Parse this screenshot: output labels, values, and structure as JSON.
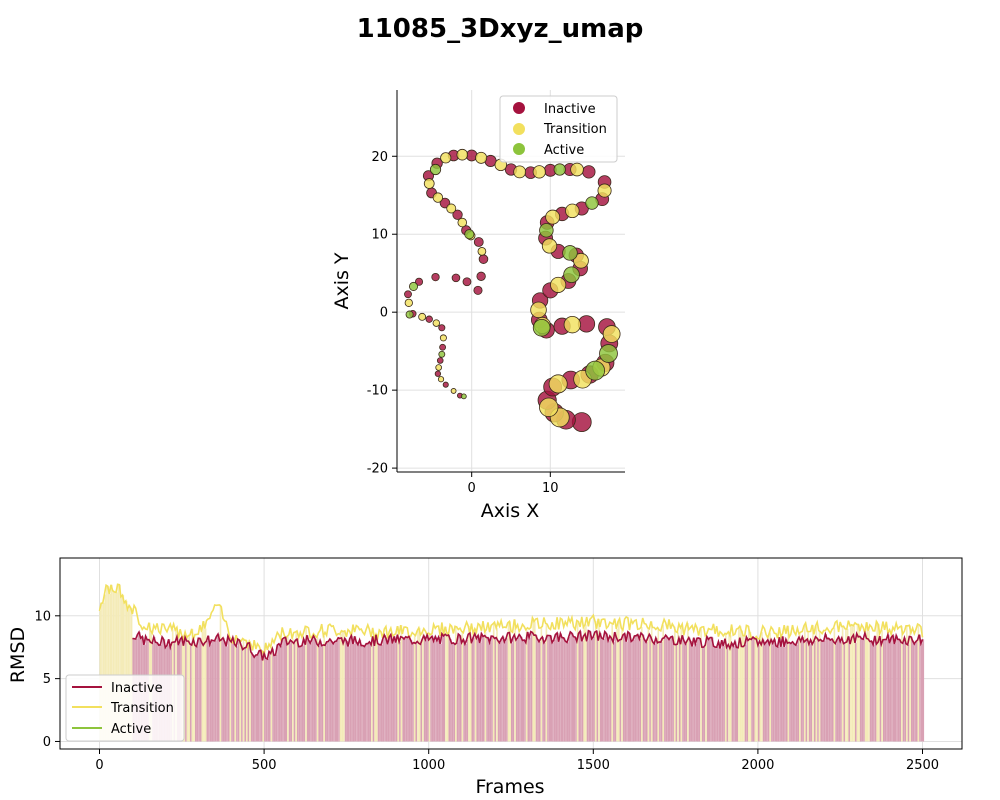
{
  "page_title": "11085_3Dxyz_umap",
  "colors": {
    "inactive": "#A5123E",
    "transition": "#F2E05E",
    "active": "#8DC43C",
    "inactive_fill": "#D9A1B4",
    "transition_fill": "#F4EBB8",
    "grid": "#E0E0E0",
    "edge": "#3A2A1A"
  },
  "chart_data": [
    {
      "type": "scatter",
      "xlabel": "Axis X",
      "ylabel": "Axis Y",
      "xlim": [
        -9.5,
        19.5
      ],
      "ylim": [
        -20.5,
        28.5
      ],
      "xticks": [
        0,
        10
      ],
      "yticks": [
        -20,
        -10,
        0,
        10,
        20
      ],
      "grid": true,
      "legend": {
        "placement": "upper right",
        "entries": [
          "Inactive",
          "Transition",
          "Active"
        ]
      },
      "series": [
        {
          "name": "Inactive",
          "points": [
            [
              14.0,
              -14.1
            ],
            [
              12.0,
              -13.8
            ],
            [
              10.5,
              -12.9
            ],
            [
              9.6,
              -11.3
            ],
            [
              10.3,
              -9.6
            ],
            [
              12.6,
              -8.7
            ],
            [
              15.0,
              -8.0
            ],
            [
              17.0,
              -6.5
            ],
            [
              17.5,
              -4.0
            ],
            [
              17.2,
              -1.9
            ],
            [
              14.6,
              -1.5
            ],
            [
              11.5,
              -1.8
            ],
            [
              9.5,
              -2.3
            ],
            [
              8.6,
              -1.0
            ],
            [
              8.7,
              1.5
            ],
            [
              10.0,
              2.8
            ],
            [
              12.3,
              4.0
            ],
            [
              13.8,
              5.6
            ],
            [
              13.3,
              7.3
            ],
            [
              11.0,
              7.8
            ],
            [
              9.4,
              9.5
            ],
            [
              9.6,
              11.5
            ],
            [
              11.5,
              12.6
            ],
            [
              14.0,
              13.3
            ],
            [
              16.6,
              14.5
            ],
            [
              16.9,
              16.7
            ],
            [
              14.9,
              18.0
            ],
            [
              12.5,
              18.3
            ],
            [
              10.0,
              18.2
            ],
            [
              7.5,
              17.9
            ],
            [
              5.0,
              18.3
            ],
            [
              2.4,
              19.4
            ],
            [
              0.0,
              20.1
            ],
            [
              -2.3,
              20.1
            ],
            [
              -4.4,
              19.1
            ],
            [
              -5.5,
              17.5
            ],
            [
              -5.1,
              15.3
            ],
            [
              -3.4,
              14.0
            ],
            [
              -1.8,
              12.5
            ],
            [
              -0.7,
              10.5
            ],
            [
              0.9,
              9.0
            ],
            [
              1.5,
              6.8
            ],
            [
              1.2,
              4.6
            ],
            [
              0.8,
              2.8
            ],
            [
              -0.6,
              3.9
            ],
            [
              -2.0,
              4.4
            ],
            [
              -4.6,
              4.5
            ],
            [
              -6.7,
              3.9
            ],
            [
              -8.1,
              2.3
            ],
            [
              -7.5,
              -0.2
            ],
            [
              -5.4,
              -0.9
            ],
            [
              -3.8,
              -2.0
            ],
            [
              -3.7,
              -4.5
            ],
            [
              -4.0,
              -6.2
            ],
            [
              -4.3,
              -7.9
            ],
            [
              -3.3,
              -9.3
            ],
            [
              -1.5,
              -10.7
            ]
          ]
        },
        {
          "name": "Transition",
          "points": [
            [
              11.2,
              -13.5
            ],
            [
              9.8,
              -12.2
            ],
            [
              11.0,
              -9.2
            ],
            [
              14.1,
              -8.6
            ],
            [
              16.5,
              -7.1
            ],
            [
              17.8,
              -2.8
            ],
            [
              12.8,
              -1.6
            ],
            [
              9.0,
              -1.7
            ],
            [
              8.5,
              0.3
            ],
            [
              11.0,
              3.5
            ],
            [
              13.9,
              6.6
            ],
            [
              9.9,
              8.5
            ],
            [
              10.3,
              12.2
            ],
            [
              12.8,
              13.0
            ],
            [
              16.9,
              15.6
            ],
            [
              13.4,
              18.3
            ],
            [
              8.6,
              18.0
            ],
            [
              6.1,
              18.0
            ],
            [
              3.7,
              18.9
            ],
            [
              1.2,
              19.8
            ],
            [
              -1.2,
              20.2
            ],
            [
              -3.3,
              19.8
            ],
            [
              -5.4,
              16.5
            ],
            [
              -4.3,
              14.7
            ],
            [
              -2.6,
              13.3
            ],
            [
              -1.2,
              11.5
            ],
            [
              -0.1,
              9.8
            ],
            [
              1.3,
              7.8
            ],
            [
              -8.0,
              1.2
            ],
            [
              -6.3,
              -0.6
            ],
            [
              -4.5,
              -1.4
            ],
            [
              -3.6,
              -3.3
            ],
            [
              -4.2,
              -7.1
            ],
            [
              -3.9,
              -8.6
            ],
            [
              -2.3,
              -10.1
            ]
          ]
        },
        {
          "name": "Active",
          "points": [
            [
              15.7,
              -7.5
            ],
            [
              17.4,
              -5.3
            ],
            [
              8.9,
              -2.0
            ],
            [
              12.7,
              4.8
            ],
            [
              12.5,
              7.6
            ],
            [
              9.5,
              10.5
            ],
            [
              15.3,
              14.0
            ],
            [
              11.2,
              18.3
            ],
            [
              -4.6,
              18.3
            ],
            [
              -0.3,
              10.0
            ],
            [
              -7.4,
              3.3
            ],
            [
              -7.9,
              -0.3
            ],
            [
              -3.8,
              -5.4
            ],
            [
              -1.0,
              -10.8
            ]
          ]
        }
      ]
    },
    {
      "type": "line",
      "xlabel": "Frames",
      "ylabel": "RMSD",
      "xlim": [
        -120,
        2620
      ],
      "ylim": [
        -0.6,
        14.6
      ],
      "xticks": [
        0,
        500,
        1000,
        1500,
        2000,
        2500
      ],
      "yticks": [
        0,
        5,
        10
      ],
      "grid": true,
      "legend": {
        "placement": "lower left",
        "entries": [
          "Inactive",
          "Transition",
          "Active"
        ]
      },
      "series": [
        {
          "name": "Transition",
          "x": [
            0,
            20,
            40,
            60,
            80,
            100,
            130,
            160,
            200,
            250,
            300,
            360,
            400,
            450,
            500,
            550,
            600,
            700,
            800,
            900,
            1000,
            1100,
            1200,
            1300,
            1400,
            1500,
            1600,
            1700,
            1800,
            1900,
            2000,
            2100,
            2200,
            2300,
            2400,
            2500
          ],
          "values": [
            10.4,
            12.5,
            11.9,
            12.3,
            11.0,
            10.5,
            9.3,
            9.1,
            8.9,
            8.7,
            8.6,
            10.8,
            8.4,
            8.0,
            7.2,
            8.6,
            8.7,
            8.9,
            8.8,
            8.7,
            8.9,
            9.0,
            9.1,
            9.3,
            9.4,
            9.5,
            9.4,
            9.3,
            8.9,
            8.8,
            8.7,
            8.8,
            9.0,
            9.2,
            9.0,
            8.8
          ]
        },
        {
          "name": "Inactive",
          "x": [
            100,
            130,
            160,
            200,
            250,
            300,
            360,
            400,
            450,
            480,
            500,
            530,
            550,
            600,
            700,
            800,
            900,
            1000,
            1100,
            1200,
            1300,
            1400,
            1500,
            1600,
            1700,
            1800,
            1900,
            2000,
            2100,
            2200,
            2300,
            2400,
            2500
          ],
          "values": [
            8.6,
            8.1,
            7.9,
            7.9,
            8.0,
            8.0,
            8.1,
            7.9,
            7.6,
            6.9,
            6.8,
            7.0,
            7.9,
            8.0,
            8.0,
            8.0,
            8.1,
            8.1,
            8.2,
            8.2,
            8.3,
            8.3,
            8.4,
            8.3,
            8.2,
            8.0,
            7.8,
            7.9,
            8.0,
            8.1,
            8.2,
            8.1,
            8.1
          ]
        },
        {
          "name": "Active",
          "x": [],
          "values": []
        }
      ]
    }
  ]
}
